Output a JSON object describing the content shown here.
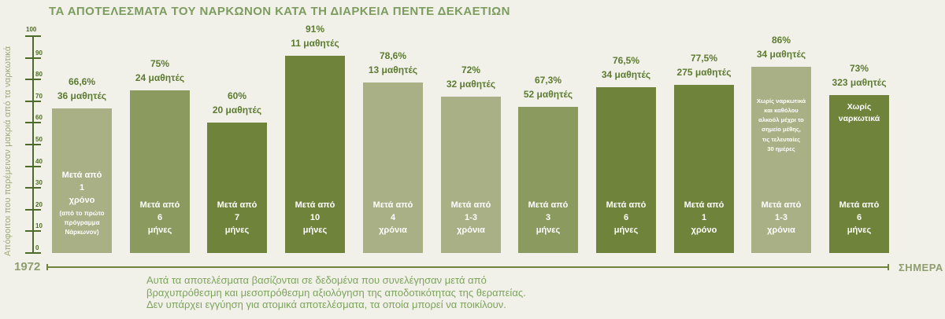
{
  "title": "ΤΑ ΑΠΟΤΕΛΕΣΜΑΤΑ ΤΟΥ ΝΑΡΚΩΝΟΝ ΚΑΤΑ ΤΗ ΔΙΑΡΚΕΙΑ ΠΕΝΤΕ ΔΕΚΑΕΤΙΩΝ",
  "y_axis": {
    "label": "Απόφοιτοι που παρέμειναν μακριά από τα ναρκωτικά",
    "ticks": [
      0,
      10,
      20,
      30,
      40,
      50,
      60,
      70,
      80,
      90,
      100
    ]
  },
  "timeline": {
    "start_label": "1972",
    "end_label": "ΣΗΜΕΡΑ"
  },
  "footnote": {
    "lines": [
      "Αυτά τα αποτελέσματα βασίζονται σε δεδομένα που συνελέγησαν μετά από",
      "βραχυπρόθεσμη και μεσοπρόθεσμη αξιολόγηση της αποδοτικότητας της θεραπείας.",
      "Δεν υπάρχει εγγύηση για ατομικά αποτελέσματα, τα οποία μπορεί να ποικίλουν."
    ]
  },
  "colors": {
    "background": "#f2f1e9",
    "bar_light": "#a9b086",
    "bar_medium": "#8b9b60",
    "bar_dark": "#6f833b",
    "label_text": "#5c7a31",
    "axis": "#4f6b2a"
  },
  "chart_data": {
    "type": "bar",
    "title": "ΤΑ ΑΠΟΤΕΛΕΣΜΑΤΑ ΤΟΥ ΝΑΡΚΩΝΟΝ ΚΑΤΑ ΤΗ ΔΙΑΡΚΕΙΑ ΠΕΝΤΕ ΔΕΚΑΕΤΙΩΝ",
    "xlabel": "1972 — ΣΗΜΕΡΑ",
    "ylabel": "Απόφοιτοι που παρέμειναν μακριά από τα ναρκωτικά",
    "ylim": [
      0,
      100
    ],
    "grid": false,
    "legend": false,
    "categories": [
      "Μετά από 1 χρόνο (από το πρώτο πρόγραμμα Νάρκωνον)",
      "Μετά από 6 μήνες",
      "Μετά από 7 μήνες",
      "Μετά από 10 μήνες",
      "Μετά από 4 χρόνια",
      "Μετά από 1-3 χρόνια",
      "Μετά από 3 μήνες",
      "Μετά από 6 μήνες",
      "Μετά από 1 χρόνο",
      "Μετά από 1-3 χρόνια",
      "Μετά από 6 μήνες"
    ],
    "values": [
      66.6,
      75,
      60,
      91,
      78.6,
      72,
      67.3,
      76.5,
      77.5,
      86,
      73
    ],
    "bars": [
      {
        "pct": "66,6%",
        "students": "36 μαθητές",
        "value": 66.6,
        "period": "Μετά από\n1\nχρόνο",
        "note": "(από το πρώτο\nπρόγραμμα\nΝάρκωνον)",
        "top_note": "",
        "shade": "light"
      },
      {
        "pct": "75%",
        "students": "24 μαθητές",
        "value": 75,
        "period": "Μετά από\n6\nμήνες",
        "note": "",
        "top_note": "",
        "shade": "medium"
      },
      {
        "pct": "60%",
        "students": "20 μαθητές",
        "value": 60,
        "period": "Μετά από\n7\nμήνες",
        "note": "",
        "top_note": "",
        "shade": "dark"
      },
      {
        "pct": "91%",
        "students": "11 μαθητές",
        "value": 91,
        "period": "Μετά από\n10\nμήνες",
        "note": "",
        "top_note": "",
        "shade": "dark"
      },
      {
        "pct": "78,6%",
        "students": "13 μαθητές",
        "value": 78.6,
        "period": "Μετά από\n4\nχρόνια",
        "note": "",
        "top_note": "",
        "shade": "light"
      },
      {
        "pct": "72%",
        "students": "32 μαθητές",
        "value": 72,
        "period": "Μετά από\n1-3\nχρόνια",
        "note": "",
        "top_note": "",
        "shade": "light"
      },
      {
        "pct": "67,3%",
        "students": "52 μαθητές",
        "value": 67.3,
        "period": "Μετά από\n3\nμήνες",
        "note": "",
        "top_note": "",
        "shade": "medium"
      },
      {
        "pct": "76,5%",
        "students": "34 μαθητές",
        "value": 76.5,
        "period": "Μετά από\n6\nμήνες",
        "note": "",
        "top_note": "",
        "shade": "dark"
      },
      {
        "pct": "77,5%",
        "students": "275 μαθητές",
        "value": 77.5,
        "period": "Μετά από\n1\nχρόνο",
        "note": "",
        "top_note": "",
        "shade": "dark"
      },
      {
        "pct": "86%",
        "students": "34 μαθητές",
        "value": 86,
        "period": "Μετά από\n1-3\nχρόνια",
        "note": "",
        "top_note": "Χωρίς ναρκωτικά\nκαι καθόλου\nαλκοόλ μέχρι το\nσημείο μέθης,\nτις τελευταίες\n30 ημέρες",
        "shade": "light"
      },
      {
        "pct": "73%",
        "students": "323 μαθητές",
        "value": 73,
        "period": "Μετά από\n6\nμήνες",
        "note": "",
        "top_note": "Χωρίς\nναρκωτικά",
        "shade": "dark"
      }
    ]
  }
}
